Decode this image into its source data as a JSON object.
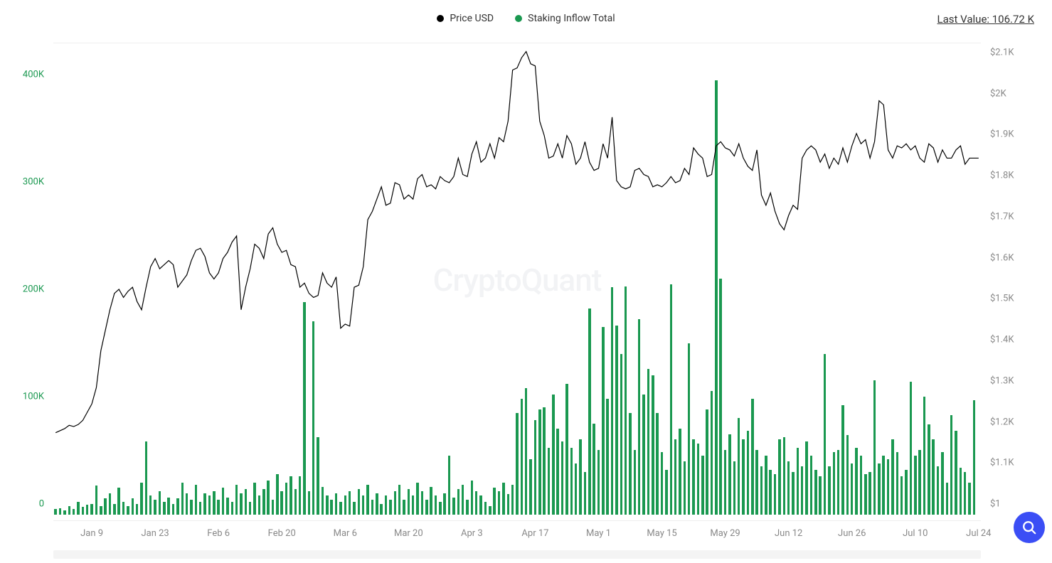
{
  "legend": {
    "series1": {
      "label": "Price USD",
      "color": "#000000"
    },
    "series2": {
      "label": "Staking Inflow Total",
      "color": "#1a9850"
    }
  },
  "last_value_label": "Last Value: 106.72 K",
  "watermark": "CryptoQuant",
  "zoom_button_color": "#3b4ef5",
  "chart": {
    "type": "combo-bar-line",
    "background_color": "#ffffff",
    "grid_color": "#eeeeee",
    "axis_font_color": "#888888",
    "axis_fontsize": 13,
    "left_axis": {
      "color": "#1a9850",
      "min": 0,
      "max": 440000,
      "ticks": [
        {
          "v": 0,
          "label": "0"
        },
        {
          "v": 100000,
          "label": "100K"
        },
        {
          "v": 200000,
          "label": "200K"
        },
        {
          "v": 300000,
          "label": "300K"
        },
        {
          "v": 400000,
          "label": "400K"
        }
      ]
    },
    "right_axis": {
      "color": "#888888",
      "min": 1000,
      "max": 2150,
      "ticks": [
        {
          "v": 1000,
          "label": "$1"
        },
        {
          "v": 1100,
          "label": "$1.1K"
        },
        {
          "v": 1200,
          "label": "$1.2K"
        },
        {
          "v": 1300,
          "label": "$1.3K"
        },
        {
          "v": 1400,
          "label": "$1.4K"
        },
        {
          "v": 1500,
          "label": "$1.5K"
        },
        {
          "v": 1600,
          "label": "$1.6K"
        },
        {
          "v": 1700,
          "label": "$1.7K"
        },
        {
          "v": 1800,
          "label": "$1.8K"
        },
        {
          "v": 1900,
          "label": "$1.9K"
        },
        {
          "v": 2000,
          "label": "$2K"
        },
        {
          "v": 2100,
          "label": "$2.1K"
        }
      ]
    },
    "x_axis": {
      "labels": [
        "Jan 9",
        "Jan 23",
        "Feb 6",
        "Feb 20",
        "Mar 6",
        "Mar 20",
        "Apr 3",
        "Apr 17",
        "May 1",
        "May 15",
        "May 29",
        "Jun 12",
        "Jun 26",
        "Jul 10",
        "Jul 24"
      ],
      "tick_indices": [
        8,
        22,
        36,
        50,
        64,
        78,
        92,
        106,
        120,
        134,
        148,
        162,
        176,
        190,
        204
      ]
    },
    "bar_color": "#1a9850",
    "bar_width_ratio": 0.55,
    "line_color": "#000000",
    "line_width": 1.2,
    "n_points": 205,
    "staking_values": [
      5000,
      6000,
      4000,
      8000,
      5000,
      12000,
      7000,
      9000,
      10000,
      27000,
      8000,
      15000,
      20000,
      10000,
      25000,
      12000,
      8000,
      15000,
      10000,
      30000,
      68000,
      18000,
      14000,
      22000,
      12000,
      16000,
      10000,
      15000,
      30000,
      20000,
      14000,
      28000,
      12000,
      20000,
      18000,
      22000,
      14000,
      25000,
      16000,
      12000,
      28000,
      20000,
      24000,
      12000,
      30000,
      18000,
      24000,
      32000,
      14000,
      38000,
      22000,
      30000,
      36000,
      24000,
      36000,
      198000,
      22000,
      180000,
      72000,
      26000,
      18000,
      14000,
      20000,
      12000,
      18000,
      22000,
      12000,
      24000,
      18000,
      28000,
      14000,
      20000,
      10000,
      18000,
      14000,
      22000,
      28000,
      14000,
      24000,
      18000,
      30000,
      22000,
      14000,
      26000,
      18000,
      12000,
      20000,
      55000,
      16000,
      24000,
      28000,
      14000,
      32000,
      22000,
      18000,
      12000,
      8000,
      25000,
      22000,
      30000,
      19000,
      28000,
      95000,
      108000,
      118000,
      52000,
      88000,
      98000,
      100000,
      62000,
      112000,
      80000,
      68000,
      122000,
      62000,
      48000,
      70000,
      40000,
      192000,
      85000,
      60000,
      175000,
      108000,
      212000,
      176000,
      150000,
      213000,
      95000,
      60000,
      182000,
      112000,
      136000,
      130000,
      95000,
      58000,
      42000,
      215000,
      70000,
      80000,
      50000,
      160000,
      70000,
      66000,
      55000,
      98000,
      115000,
      405000,
      220000,
      60000,
      75000,
      50000,
      90000,
      70000,
      78000,
      108000,
      60000,
      45000,
      55000,
      42000,
      38000,
      70000,
      72000,
      50000,
      40000,
      62000,
      45000,
      68000,
      55000,
      42000,
      36000,
      150000,
      45000,
      58000,
      60000,
      102000,
      74000,
      48000,
      62000,
      55000,
      38000,
      40000,
      125000,
      48000,
      55000,
      52000,
      70000,
      58000,
      36000,
      42000,
      124000,
      55000,
      60000,
      110000,
      84000,
      70000,
      45000,
      58000,
      30000,
      93000,
      78000,
      44000,
      40000,
      30000,
      106720,
      0
    ],
    "price_values": [
      1200,
      1205,
      1210,
      1218,
      1215,
      1220,
      1230,
      1250,
      1270,
      1310,
      1400,
      1450,
      1500,
      1540,
      1550,
      1530,
      1545,
      1555,
      1520,
      1500,
      1555,
      1605,
      1625,
      1600,
      1610,
      1620,
      1610,
      1555,
      1570,
      1585,
      1620,
      1645,
      1650,
      1630,
      1590,
      1575,
      1590,
      1625,
      1640,
      1665,
      1680,
      1500,
      1555,
      1600,
      1660,
      1650,
      1625,
      1685,
      1700,
      1660,
      1640,
      1645,
      1610,
      1605,
      1555,
      1565,
      1540,
      1530,
      1535,
      1590,
      1565,
      1555,
      1580,
      1455,
      1465,
      1460,
      1555,
      1560,
      1605,
      1720,
      1740,
      1770,
      1800,
      1755,
      1760,
      1810,
      1805,
      1770,
      1780,
      1770,
      1820,
      1830,
      1800,
      1805,
      1795,
      1825,
      1815,
      1810,
      1825,
      1870,
      1830,
      1825,
      1880,
      1910,
      1860,
      1870,
      1905,
      1870,
      1920,
      1910,
      1960,
      2085,
      2090,
      2115,
      2130,
      2100,
      2095,
      1960,
      1925,
      1870,
      1875,
      1905,
      1870,
      1925,
      1905,
      1855,
      1870,
      1910,
      1860,
      1840,
      1845,
      1905,
      1870,
      1970,
      1815,
      1800,
      1795,
      1800,
      1840,
      1845,
      1830,
      1825,
      1800,
      1805,
      1800,
      1810,
      1825,
      1810,
      1815,
      1845,
      1830,
      1895,
      1880,
      1870,
      1825,
      1830,
      1900,
      1910,
      1895,
      1890,
      1875,
      1905,
      1870,
      1850,
      1840,
      1890,
      1780,
      1755,
      1785,
      1740,
      1710,
      1695,
      1730,
      1755,
      1745,
      1870,
      1890,
      1900,
      1890,
      1860,
      1880,
      1845,
      1870,
      1855,
      1895,
      1860,
      1900,
      1930,
      1905,
      1915,
      1870,
      1910,
      2010,
      2000,
      1890,
      1870,
      1900,
      1895,
      1905,
      1890,
      1900,
      1870,
      1860,
      1905,
      1895,
      1860,
      1890,
      1870,
      1870,
      1890,
      1900,
      1855,
      1870,
      1870,
      1870
    ]
  }
}
